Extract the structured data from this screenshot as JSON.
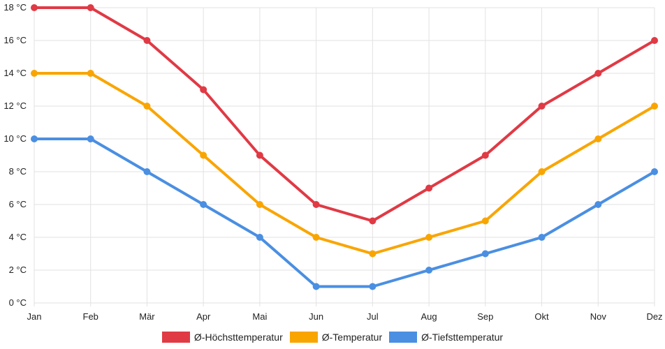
{
  "chart_data": {
    "type": "line",
    "categories": [
      "Jan",
      "Feb",
      "Mär",
      "Apr",
      "Mai",
      "Jun",
      "Jul",
      "Aug",
      "Sep",
      "Okt",
      "Nov",
      "Dez"
    ],
    "series": [
      {
        "name": "Ø-Höchsttemperatur",
        "color": "#e03a45",
        "values": [
          18,
          18,
          16,
          13,
          9,
          6,
          5,
          7,
          9,
          12,
          14,
          16
        ]
      },
      {
        "name": "Ø-Temperatur",
        "color": "#f9a500",
        "values": [
          14,
          14,
          12,
          9,
          6,
          4,
          3,
          4,
          5,
          8,
          10,
          12
        ]
      },
      {
        "name": "Ø-Tiefsttemperatur",
        "color": "#4a8fe2",
        "values": [
          10,
          10,
          8,
          6,
          4,
          1,
          1,
          2,
          3,
          4,
          6,
          8
        ]
      }
    ],
    "y_ticks": [
      "0 °C",
      "2 °C",
      "4 °C",
      "6 °C",
      "8 °C",
      "10 °C",
      "12 °C",
      "14 °C",
      "16 °C",
      "18 °C"
    ],
    "ylim": [
      0,
      18
    ],
    "y_step": 2,
    "grid": true,
    "legend": "bottom-center",
    "title": "",
    "xlabel": "",
    "ylabel": ""
  }
}
